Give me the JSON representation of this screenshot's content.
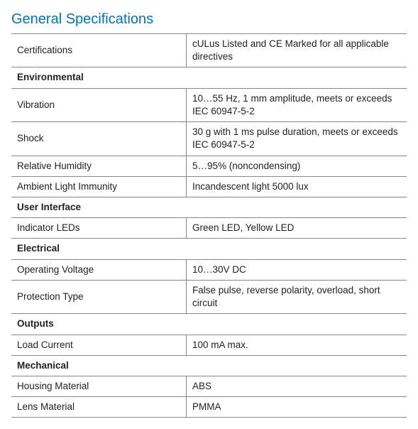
{
  "title": "General Specifications",
  "colors": {
    "title": "#0073b9",
    "border": "#888888",
    "text": "#222222",
    "background": "#ffffff"
  },
  "rows": [
    {
      "type": "row",
      "label": "Certifications",
      "value": "cULus Listed and CE Marked for all applicable directives"
    },
    {
      "type": "section",
      "label": "Environmental"
    },
    {
      "type": "row",
      "label": "Vibration",
      "value": "10…55 Hz, 1 mm amplitude, meets or exceeds IEC 60947-5-2"
    },
    {
      "type": "row",
      "label": "Shock",
      "value": "30 g with 1 ms pulse duration, meets or exceeds IEC 60947-5-2"
    },
    {
      "type": "row",
      "label": "Relative Humidity",
      "value": "5…95% (noncondensing)"
    },
    {
      "type": "row",
      "label": "Ambient Light Immunity",
      "value": "Incandescent light 5000 lux"
    },
    {
      "type": "section",
      "label": "User Interface"
    },
    {
      "type": "row",
      "label": "Indicator LEDs",
      "value": "Green LED, Yellow LED"
    },
    {
      "type": "section",
      "label": "Electrical"
    },
    {
      "type": "row",
      "label": "Operating Voltage",
      "value": "10…30V DC"
    },
    {
      "type": "row",
      "label": "Protection Type",
      "value": "False pulse, reverse polarity, overload, short circuit"
    },
    {
      "type": "section",
      "label": "Outputs"
    },
    {
      "type": "row",
      "label": "Load Current",
      "value": "100 mA max."
    },
    {
      "type": "section",
      "label": "Mechanical"
    },
    {
      "type": "row",
      "label": "Housing Material",
      "value": "ABS"
    },
    {
      "type": "row",
      "label": "Lens Material",
      "value": "PMMA"
    }
  ]
}
